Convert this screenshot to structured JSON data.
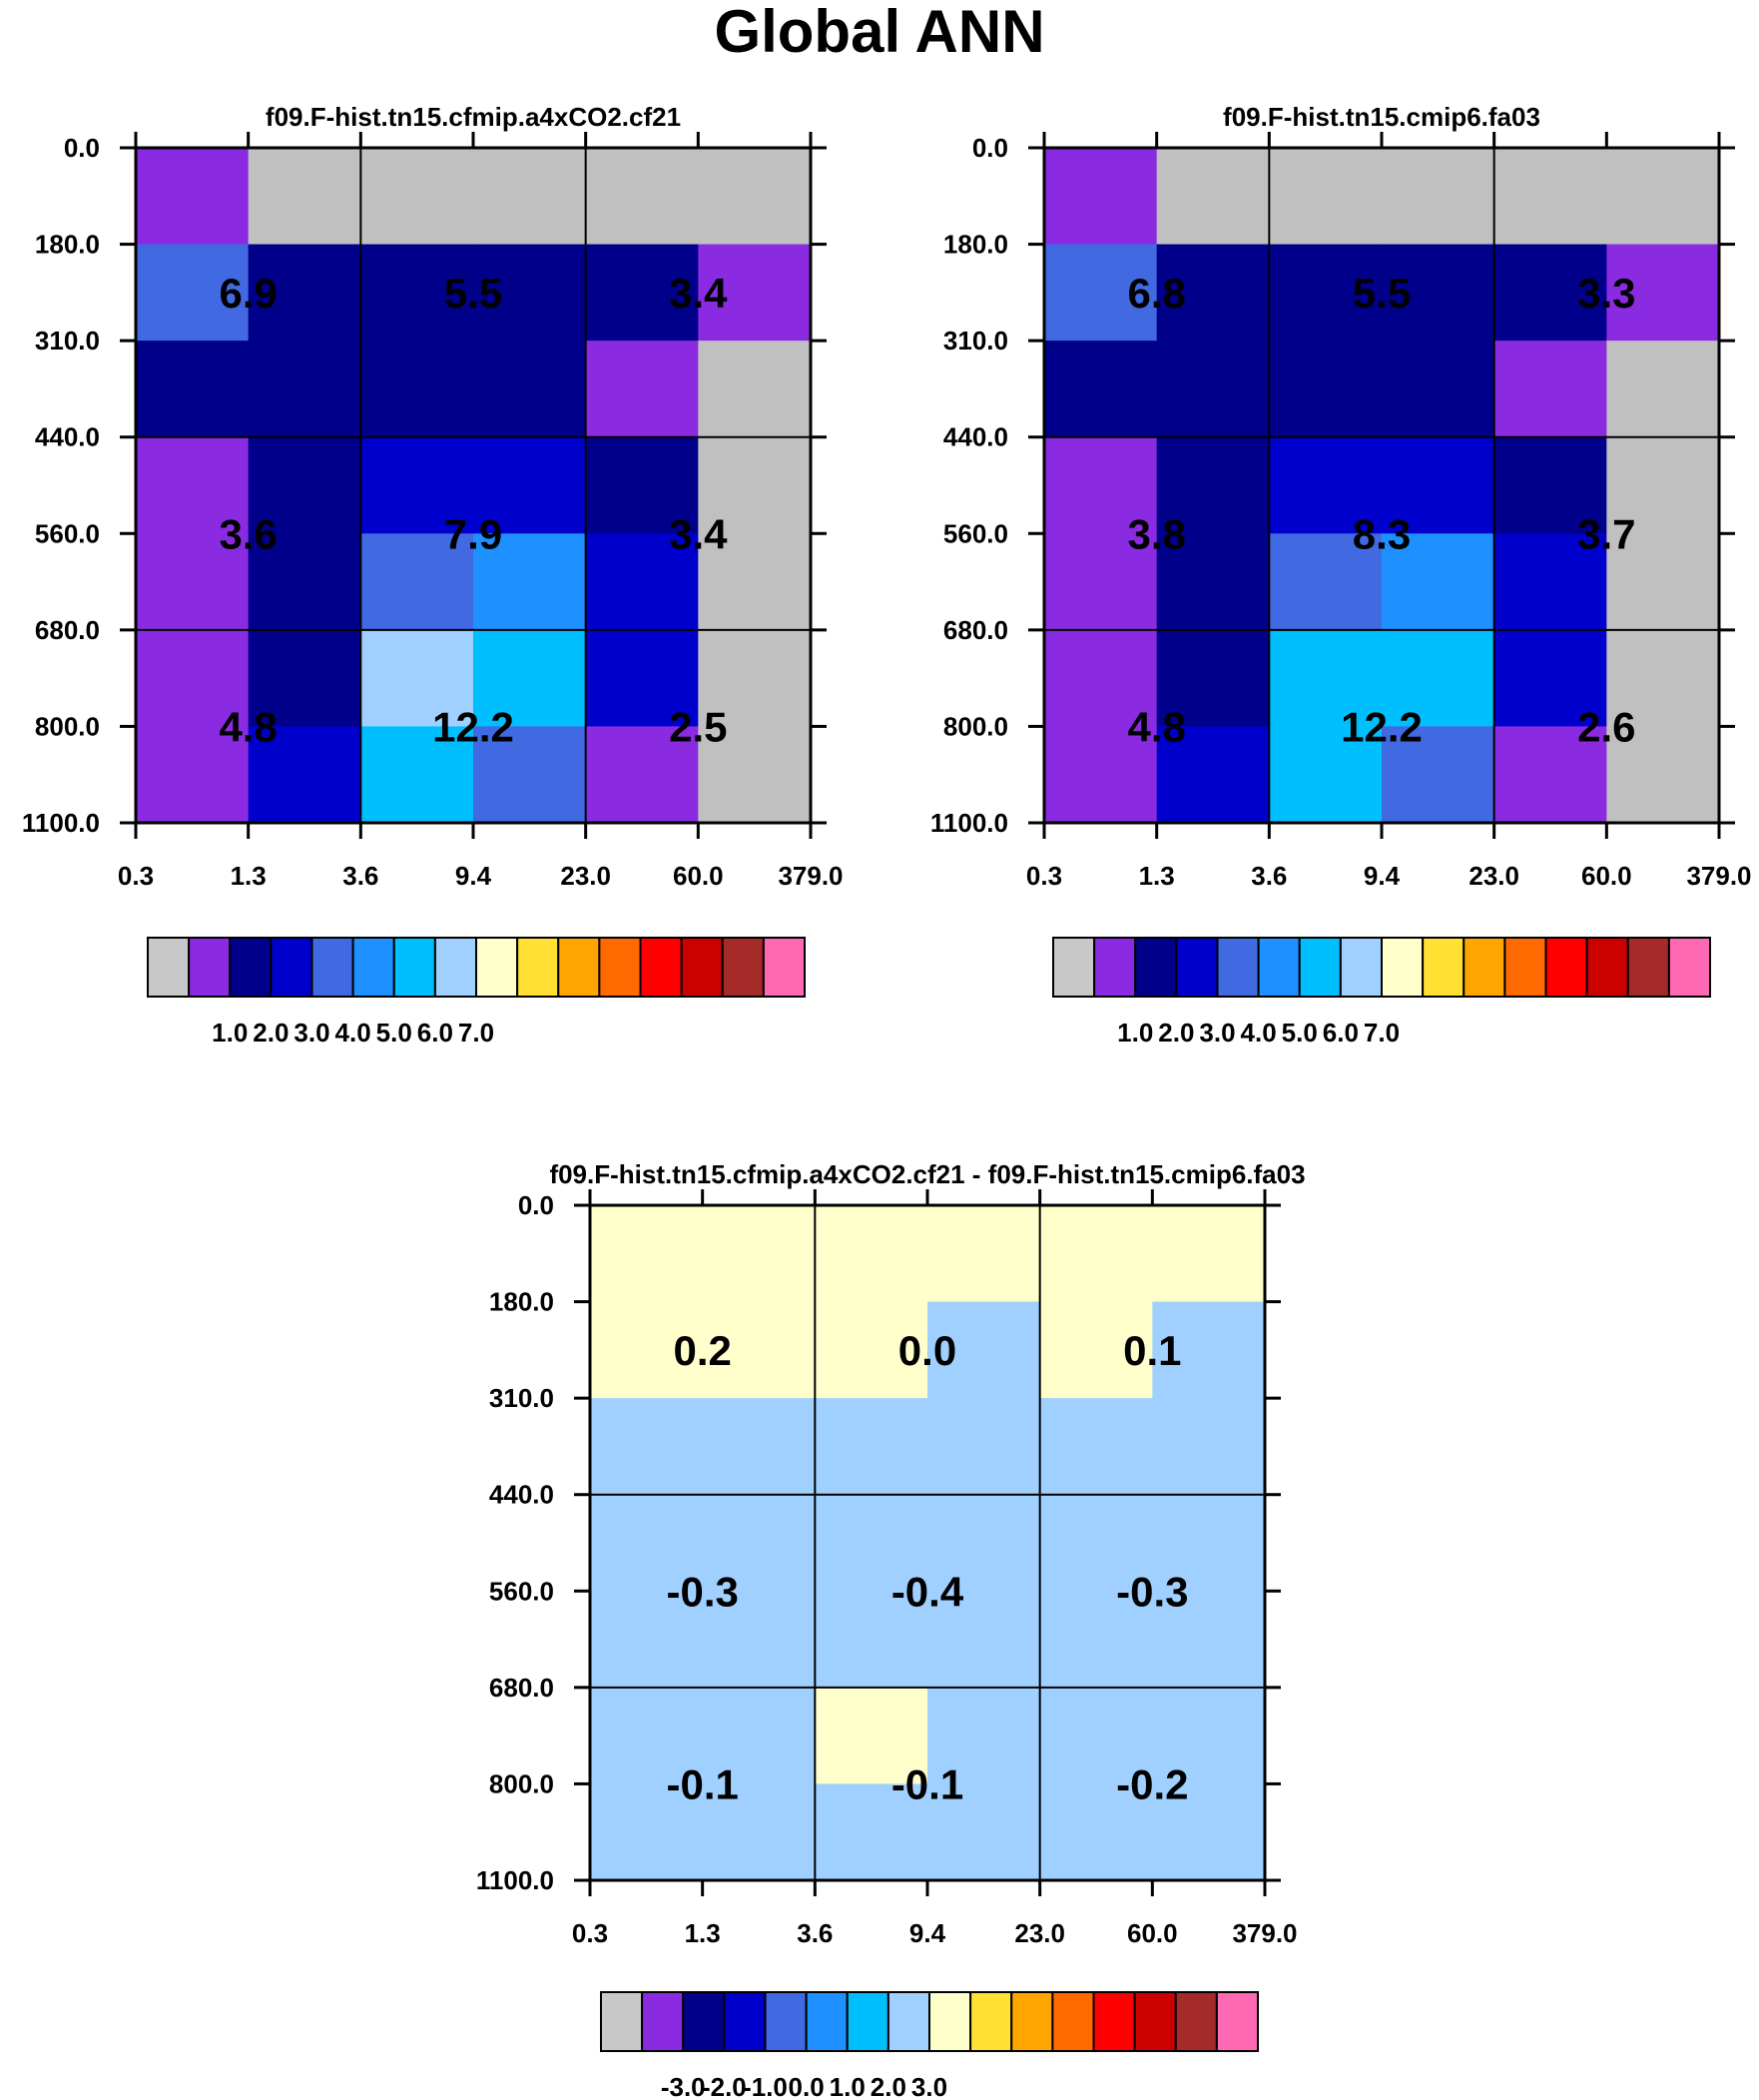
{
  "title": "Global ANN",
  "chart_data": [
    {
      "type": "heatmap",
      "title": "f09.F-hist.tn15.cfmip.a4xCO2.cf21",
      "xlabel": "",
      "ylabel": "",
      "x_tick_labels": [
        "0.3",
        "1.3",
        "3.6",
        "9.4",
        "23.0",
        "60.0",
        "379.0"
      ],
      "y_tick_labels": [
        "0.0",
        "180.0",
        "310.0",
        "440.0",
        "560.0",
        "680.0",
        "800.0",
        "1100.0"
      ],
      "grid": true,
      "cell_colors": [
        [
          "#8a2be2",
          "#c0c0c0",
          "#c0c0c0",
          "#c0c0c0",
          "#c0c0c0",
          "#c0c0c0"
        ],
        [
          "#4169e1",
          "#00008b",
          "#00008b",
          "#00008b",
          "#00008b",
          "#8a2be2"
        ],
        [
          "#00008b",
          "#00008b",
          "#00008b",
          "#00008b",
          "#8a2be2",
          "#c0c0c0"
        ],
        [
          "#8a2be2",
          "#00008b",
          "#0000cd",
          "#0000cd",
          "#00008b",
          "#c0c0c0"
        ],
        [
          "#8a2be2",
          "#00008b",
          "#4169e1",
          "#1e90ff",
          "#0000cd",
          "#c0c0c0"
        ],
        [
          "#8a2be2",
          "#00008b",
          "#a0d0ff",
          "#00bfff",
          "#0000cd",
          "#c0c0c0"
        ],
        [
          "#8a2be2",
          "#0000cd",
          "#00bfff",
          "#4169e1",
          "#8a2be2",
          "#c0c0c0"
        ]
      ],
      "block_values": [
        [
          "6.9",
          "5.5",
          "3.4"
        ],
        [
          "3.6",
          "7.9",
          "3.4"
        ],
        [
          "4.8",
          "12.2",
          "2.5"
        ]
      ],
      "colorbar": {
        "colors": [
          "#c8c8c8",
          "#8a2be2",
          "#00008b",
          "#0000cd",
          "#4169e1",
          "#1e90ff",
          "#00bfff",
          "#a0d0ff",
          "#ffffcc",
          "#ffe033",
          "#ffa500",
          "#ff6a00",
          "#ff0000",
          "#cd0000",
          "#a52a2a",
          "#ff69b4"
        ],
        "labels": [
          "1.0",
          "2.0",
          "3.0",
          "4.0",
          "5.0",
          "6.0",
          "7.0"
        ]
      }
    },
    {
      "type": "heatmap",
      "title": "f09.F-hist.tn15.cmip6.fa03",
      "xlabel": "",
      "ylabel": "",
      "x_tick_labels": [
        "0.3",
        "1.3",
        "3.6",
        "9.4",
        "23.0",
        "60.0",
        "379.0"
      ],
      "y_tick_labels": [
        "0.0",
        "180.0",
        "310.0",
        "440.0",
        "560.0",
        "680.0",
        "800.0",
        "1100.0"
      ],
      "grid": true,
      "cell_colors": [
        [
          "#8a2be2",
          "#c0c0c0",
          "#c0c0c0",
          "#c0c0c0",
          "#c0c0c0",
          "#c0c0c0"
        ],
        [
          "#4169e1",
          "#00008b",
          "#00008b",
          "#00008b",
          "#00008b",
          "#8a2be2"
        ],
        [
          "#00008b",
          "#00008b",
          "#00008b",
          "#00008b",
          "#8a2be2",
          "#c0c0c0"
        ],
        [
          "#8a2be2",
          "#00008b",
          "#0000cd",
          "#0000cd",
          "#00008b",
          "#c0c0c0"
        ],
        [
          "#8a2be2",
          "#00008b",
          "#4169e1",
          "#1e90ff",
          "#0000cd",
          "#c0c0c0"
        ],
        [
          "#8a2be2",
          "#00008b",
          "#00bfff",
          "#00bfff",
          "#0000cd",
          "#c0c0c0"
        ],
        [
          "#8a2be2",
          "#0000cd",
          "#00bfff",
          "#4169e1",
          "#8a2be2",
          "#c0c0c0"
        ]
      ],
      "block_values": [
        [
          "6.8",
          "5.5",
          "3.3"
        ],
        [
          "3.8",
          "8.3",
          "3.7"
        ],
        [
          "4.8",
          "12.2",
          "2.6"
        ]
      ],
      "colorbar": {
        "colors": [
          "#c8c8c8",
          "#8a2be2",
          "#00008b",
          "#0000cd",
          "#4169e1",
          "#1e90ff",
          "#00bfff",
          "#a0d0ff",
          "#ffffcc",
          "#ffe033",
          "#ffa500",
          "#ff6a00",
          "#ff0000",
          "#cd0000",
          "#a52a2a",
          "#ff69b4"
        ],
        "labels": [
          "1.0",
          "2.0",
          "3.0",
          "4.0",
          "5.0",
          "6.0",
          "7.0"
        ]
      }
    },
    {
      "type": "heatmap",
      "title": "f09.F-hist.tn15.cfmip.a4xCO2.cf21 - f09.F-hist.tn15.cmip6.fa03",
      "xlabel": "",
      "ylabel": "",
      "x_tick_labels": [
        "0.3",
        "1.3",
        "3.6",
        "9.4",
        "23.0",
        "60.0",
        "379.0"
      ],
      "y_tick_labels": [
        "0.0",
        "180.0",
        "310.0",
        "440.0",
        "560.0",
        "680.0",
        "800.0",
        "1100.0"
      ],
      "grid": true,
      "cell_colors": [
        [
          "#ffffcc",
          "#ffffcc",
          "#ffffcc",
          "#ffffcc",
          "#ffffcc",
          "#ffffcc"
        ],
        [
          "#ffffcc",
          "#ffffcc",
          "#ffffcc",
          "#a0d0ff",
          "#ffffcc",
          "#a0d0ff"
        ],
        [
          "#a0d0ff",
          "#a0d0ff",
          "#a0d0ff",
          "#a0d0ff",
          "#a0d0ff",
          "#a0d0ff"
        ],
        [
          "#a0d0ff",
          "#a0d0ff",
          "#a0d0ff",
          "#a0d0ff",
          "#a0d0ff",
          "#a0d0ff"
        ],
        [
          "#a0d0ff",
          "#a0d0ff",
          "#a0d0ff",
          "#a0d0ff",
          "#a0d0ff",
          "#a0d0ff"
        ],
        [
          "#a0d0ff",
          "#a0d0ff",
          "#ffffcc",
          "#a0d0ff",
          "#a0d0ff",
          "#a0d0ff"
        ],
        [
          "#a0d0ff",
          "#a0d0ff",
          "#a0d0ff",
          "#a0d0ff",
          "#a0d0ff",
          "#a0d0ff"
        ]
      ],
      "block_values": [
        [
          "0.2",
          "0.0",
          "0.1"
        ],
        [
          "-0.3",
          "-0.4",
          "-0.3"
        ],
        [
          "-0.1",
          "-0.1",
          "-0.2"
        ]
      ],
      "colorbar": {
        "colors": [
          "#c8c8c8",
          "#8a2be2",
          "#00008b",
          "#0000cd",
          "#4169e1",
          "#1e90ff",
          "#00bfff",
          "#a0d0ff",
          "#ffffcc",
          "#ffe033",
          "#ffa500",
          "#ff6a00",
          "#ff0000",
          "#cd0000",
          "#a52a2a",
          "#ff69b4"
        ],
        "labels": [
          "-3.0",
          "-2.0",
          "-1.0",
          "0.0",
          "1.0",
          "2.0",
          "3.0"
        ]
      }
    }
  ]
}
